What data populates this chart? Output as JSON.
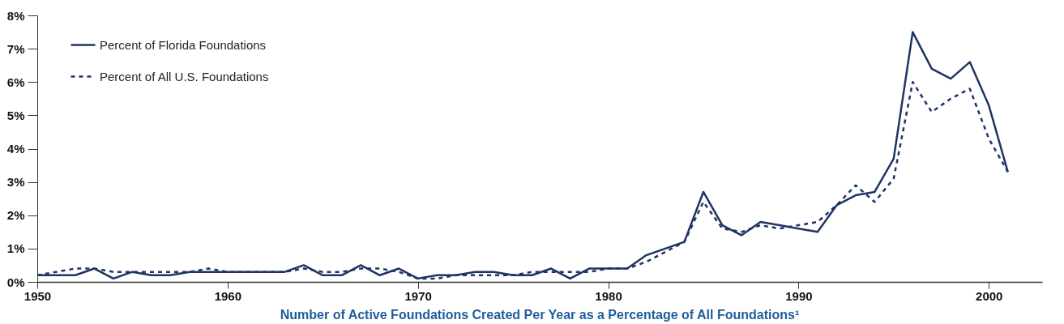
{
  "chart_data": {
    "type": "line",
    "title": "Number of Active Foundations Created Per Year as a Percentage of All Foundations¹",
    "x": [
      1950,
      1951,
      1952,
      1953,
      1954,
      1955,
      1956,
      1957,
      1958,
      1959,
      1960,
      1961,
      1962,
      1963,
      1964,
      1965,
      1966,
      1967,
      1968,
      1969,
      1970,
      1971,
      1972,
      1973,
      1974,
      1975,
      1976,
      1977,
      1978,
      1979,
      1980,
      1981,
      1982,
      1983,
      1984,
      1985,
      1986,
      1987,
      1988,
      1989,
      1990,
      1991,
      1992,
      1993,
      1994,
      1995,
      1996,
      1997,
      1998,
      1999,
      2000,
      2001
    ],
    "series": [
      {
        "name": "Percent of Florida Foundations",
        "color": "#1f3464",
        "line_style": "solid",
        "values": [
          0.2,
          0.2,
          0.2,
          0.4,
          0.1,
          0.3,
          0.2,
          0.2,
          0.3,
          0.3,
          0.3,
          0.3,
          0.3,
          0.3,
          0.5,
          0.2,
          0.2,
          0.5,
          0.2,
          0.4,
          0.1,
          0.2,
          0.2,
          0.3,
          0.3,
          0.2,
          0.2,
          0.4,
          0.1,
          0.4,
          0.4,
          0.4,
          0.8,
          1.0,
          1.2,
          2.7,
          1.7,
          1.4,
          1.8,
          1.7,
          1.6,
          1.5,
          2.3,
          2.6,
          2.7,
          3.7,
          7.5,
          6.4,
          6.1,
          6.6,
          5.3,
          3.3
        ]
      },
      {
        "name": "Percent of All U.S. Foundations",
        "color": "#1f3464",
        "line_style": "dashed",
        "values": [
          0.2,
          0.3,
          0.4,
          0.4,
          0.3,
          0.3,
          0.3,
          0.3,
          0.3,
          0.4,
          0.3,
          0.3,
          0.3,
          0.3,
          0.4,
          0.3,
          0.3,
          0.4,
          0.4,
          0.3,
          0.1,
          0.1,
          0.2,
          0.2,
          0.2,
          0.2,
          0.3,
          0.3,
          0.3,
          0.3,
          0.4,
          0.4,
          0.6,
          0.9,
          1.2,
          2.4,
          1.6,
          1.5,
          1.7,
          1.6,
          1.7,
          1.8,
          2.3,
          2.9,
          2.4,
          3.1,
          6.0,
          5.1,
          5.5,
          5.8,
          4.3,
          3.3
        ]
      }
    ],
    "xlim": [
      1950,
      2002.8
    ],
    "xticks": [
      1950,
      1960,
      1970,
      1980,
      1990,
      2000
    ],
    "ylim": [
      0,
      8
    ],
    "yticks": [
      {
        "value": 0,
        "label": "0%"
      },
      {
        "value": 1,
        "label": "1%"
      },
      {
        "value": 2,
        "label": "2%"
      },
      {
        "value": 3,
        "label": "3%"
      },
      {
        "value": 4,
        "label": "4%"
      },
      {
        "value": 5,
        "label": "5%"
      },
      {
        "value": 6,
        "label": "6%"
      },
      {
        "value": 7,
        "label": "7%"
      },
      {
        "value": 8,
        "label": "8%"
      }
    ],
    "grid": false,
    "legend": "top left",
    "marker": "none"
  }
}
